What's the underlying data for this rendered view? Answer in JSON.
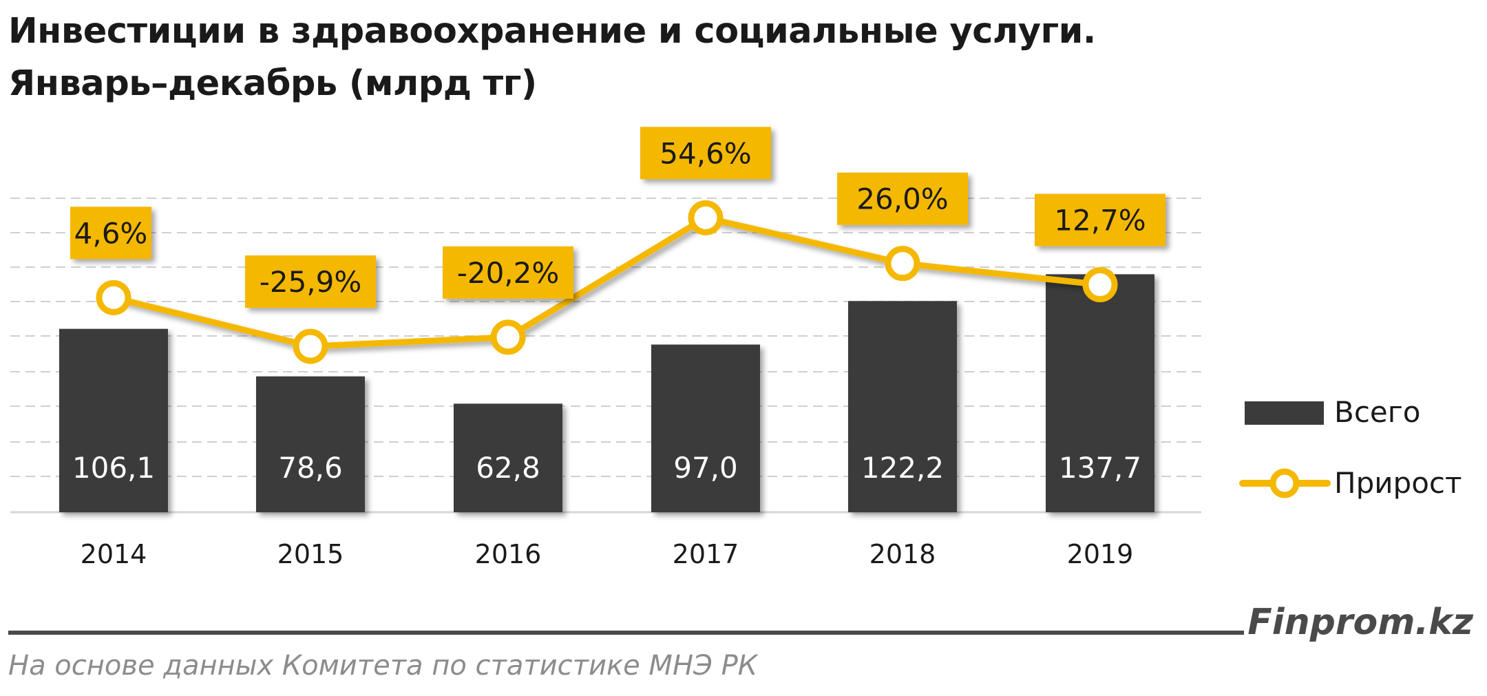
{
  "header": {
    "title_line1": "Инвестиции в здравоохранение и социальные услуги.",
    "title_line2": "Январь–декабрь (млрд тг)"
  },
  "chart_data": {
    "type": "bar",
    "categories": [
      "2014",
      "2015",
      "2016",
      "2017",
      "2018",
      "2019"
    ],
    "series": [
      {
        "name": "Всего",
        "type": "bar",
        "values": [
          106.1,
          78.6,
          62.8,
          97.0,
          122.2,
          137.7
        ],
        "labels": [
          "106,1",
          "78,6",
          "62,8",
          "97,0",
          "122,2",
          "137,7"
        ],
        "color": "#3b3b3b"
      },
      {
        "name": "Прирост",
        "type": "line",
        "values": [
          4.6,
          -25.9,
          -20.2,
          54.6,
          26.0,
          12.7
        ],
        "labels": [
          "4,6%",
          "-25,9%",
          "-20,2%",
          "54,6%",
          "26,0%",
          "12,7%"
        ],
        "unit": "%",
        "color": "#f5b800"
      }
    ],
    "title": "Инвестиции в здравоохранение и социальные услуги. Январь–декабрь (млрд тг)",
    "xlabel": "",
    "ylabel": "",
    "grid": true,
    "legend_position": "right"
  },
  "footer": {
    "brand": "Finprom.kz",
    "source": "На основе данных Комитета по статистике МНЭ РК"
  }
}
